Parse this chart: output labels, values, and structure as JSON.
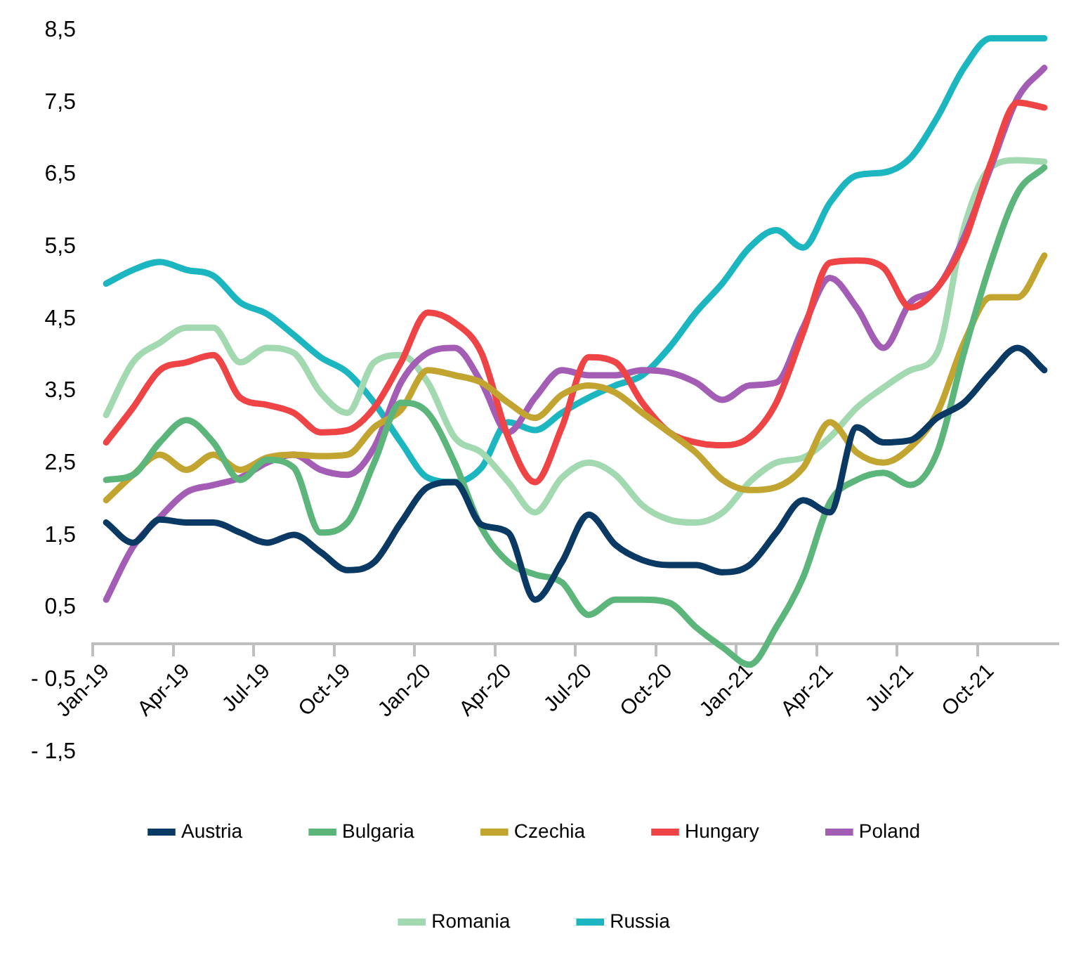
{
  "chart_data": {
    "type": "line",
    "categories": [
      "Jan-19",
      null,
      null,
      "Apr-19",
      null,
      null,
      "Jul-19",
      null,
      null,
      "Oct-19",
      null,
      null,
      "Jan-20",
      null,
      null,
      "Apr-20",
      null,
      null,
      "Jul-20",
      null,
      null,
      "Oct-20",
      null,
      null,
      "Jan-21",
      null,
      null,
      "Apr-21",
      null,
      null,
      "Jul-21",
      null,
      null,
      "Oct-21",
      null,
      null
    ],
    "series": [
      {
        "name": "Austria",
        "color": "#0a3a63",
        "values": [
          1.68,
          1.4,
          1.72,
          1.68,
          1.68,
          1.54,
          1.4,
          1.51,
          1.27,
          1.02,
          1.13,
          1.68,
          2.17,
          2.24,
          1.65,
          1.54,
          0.61,
          1.13,
          1.79,
          1.37,
          1.16,
          1.09,
          1.09,
          0.99,
          1.09,
          1.54,
          1.99,
          1.82,
          3.0,
          2.79,
          2.82,
          3.13,
          3.34,
          3.76,
          4.1,
          3.79
        ]
      },
      {
        "name": "Bulgaria",
        "color": "#5cb57a",
        "values": [
          2.27,
          2.34,
          2.79,
          3.1,
          2.79,
          2.27,
          2.55,
          2.44,
          1.54,
          1.68,
          2.51,
          3.34,
          3.2,
          2.51,
          1.61,
          1.13,
          0.96,
          0.85,
          0.4,
          0.61,
          0.61,
          0.57,
          0.23,
          -0.05,
          -0.29,
          0.23,
          0.92,
          1.96,
          2.27,
          2.37,
          2.2,
          2.65,
          4.03,
          5.28,
          6.25,
          6.6
        ]
      },
      {
        "name": "Czechia",
        "color": "#c2a531",
        "values": [
          1.99,
          2.34,
          2.62,
          2.41,
          2.62,
          2.41,
          2.58,
          2.62,
          2.6,
          2.62,
          3.0,
          3.24,
          3.79,
          3.72,
          3.62,
          3.34,
          3.13,
          3.45,
          3.58,
          3.48,
          3.2,
          2.93,
          2.65,
          2.27,
          2.13,
          2.17,
          2.44,
          3.07,
          2.65,
          2.51,
          2.72,
          3.2,
          4.17,
          4.8,
          4.8,
          5.38
        ]
      },
      {
        "name": "Hungary",
        "color": "#ee4445",
        "values": [
          2.79,
          3.27,
          3.79,
          3.9,
          4.0,
          3.41,
          3.31,
          3.2,
          2.93,
          2.96,
          3.27,
          3.9,
          4.59,
          4.45,
          4.03,
          2.86,
          2.24,
          3.0,
          3.97,
          3.9,
          3.34,
          2.93,
          2.79,
          2.75,
          2.86,
          3.34,
          4.31,
          5.28,
          5.31,
          5.21,
          4.66,
          4.93,
          5.56,
          6.66,
          7.5,
          7.43
        ]
      },
      {
        "name": "Poland",
        "color": "#a35db4",
        "values": [
          0.61,
          1.34,
          1.75,
          2.1,
          2.2,
          2.3,
          2.51,
          2.62,
          2.41,
          2.34,
          2.72,
          3.62,
          4.03,
          4.1,
          3.62,
          2.93,
          3.41,
          3.79,
          3.72,
          3.72,
          3.79,
          3.76,
          3.62,
          3.38,
          3.58,
          3.62,
          4.38,
          5.07,
          4.66,
          4.1,
          4.73,
          4.93,
          5.63,
          6.6,
          7.56,
          7.98
        ]
      },
      {
        "name": "Romania",
        "color": "#a3d9b1",
        "values": [
          3.17,
          3.9,
          4.17,
          4.38,
          4.38,
          3.9,
          4.1,
          4.03,
          3.48,
          3.2,
          3.9,
          4.0,
          3.62,
          2.86,
          2.65,
          2.24,
          1.82,
          2.3,
          2.51,
          2.34,
          1.92,
          1.72,
          1.68,
          1.82,
          2.24,
          2.51,
          2.58,
          2.86,
          3.27,
          3.55,
          3.79,
          4.03,
          5.76,
          6.6,
          6.7,
          6.68
        ]
      },
      {
        "name": "Russia",
        "color": "#1cb6c0",
        "values": [
          4.99,
          5.18,
          5.29,
          5.18,
          5.1,
          4.73,
          4.57,
          4.28,
          3.97,
          3.76,
          3.34,
          2.79,
          2.3,
          2.24,
          2.44,
          3.07,
          2.96,
          3.2,
          3.41,
          3.58,
          3.72,
          4.1,
          4.59,
          5.0,
          5.49,
          5.73,
          5.49,
          6.11,
          6.49,
          6.53,
          6.73,
          7.29,
          7.98,
          8.39,
          8.39,
          8.39
        ]
      }
    ],
    "ylim": [
      -1.5,
      8.5
    ],
    "yticks": [
      {
        "value": -1.5,
        "label": "- 1,5"
      },
      {
        "value": -0.5,
        "label": "- 0,5"
      },
      {
        "value": 0.5,
        "label": "0,5"
      },
      {
        "value": 1.5,
        "label": "1,5"
      },
      {
        "value": 2.5,
        "label": "2,5"
      },
      {
        "value": 3.5,
        "label": "3,5"
      },
      {
        "value": 4.5,
        "label": "4,5"
      },
      {
        "value": 5.5,
        "label": "5,5"
      },
      {
        "value": 6.5,
        "label": "6,5"
      },
      {
        "value": 7.5,
        "label": "7,5"
      },
      {
        "value": 8.5,
        "label": "8,5"
      }
    ],
    "grid": false,
    "legend": "bottom",
    "marker": "none",
    "line_style": "solid"
  }
}
